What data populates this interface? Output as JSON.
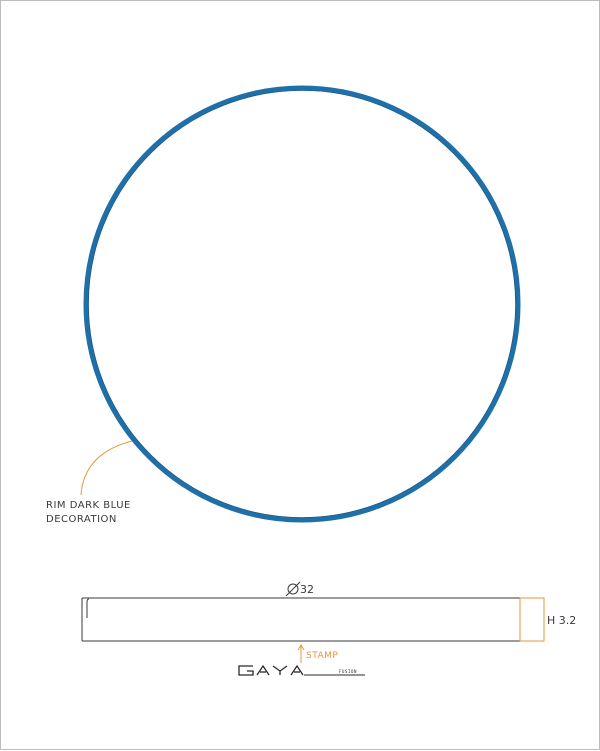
{
  "drawing": {
    "rim_label_line1": "RIM DARK BLUE",
    "rim_label_line2": "DECORATION",
    "diameter_label": "32",
    "height_label": "H 3.2",
    "stamp_label": "STAMP"
  },
  "logo": {
    "brand": "GAYA",
    "sub": "FUSION"
  },
  "colors": {
    "rim": "#1f6fa8",
    "annotation": "#e8953a",
    "outline": "#3a3a3a"
  }
}
